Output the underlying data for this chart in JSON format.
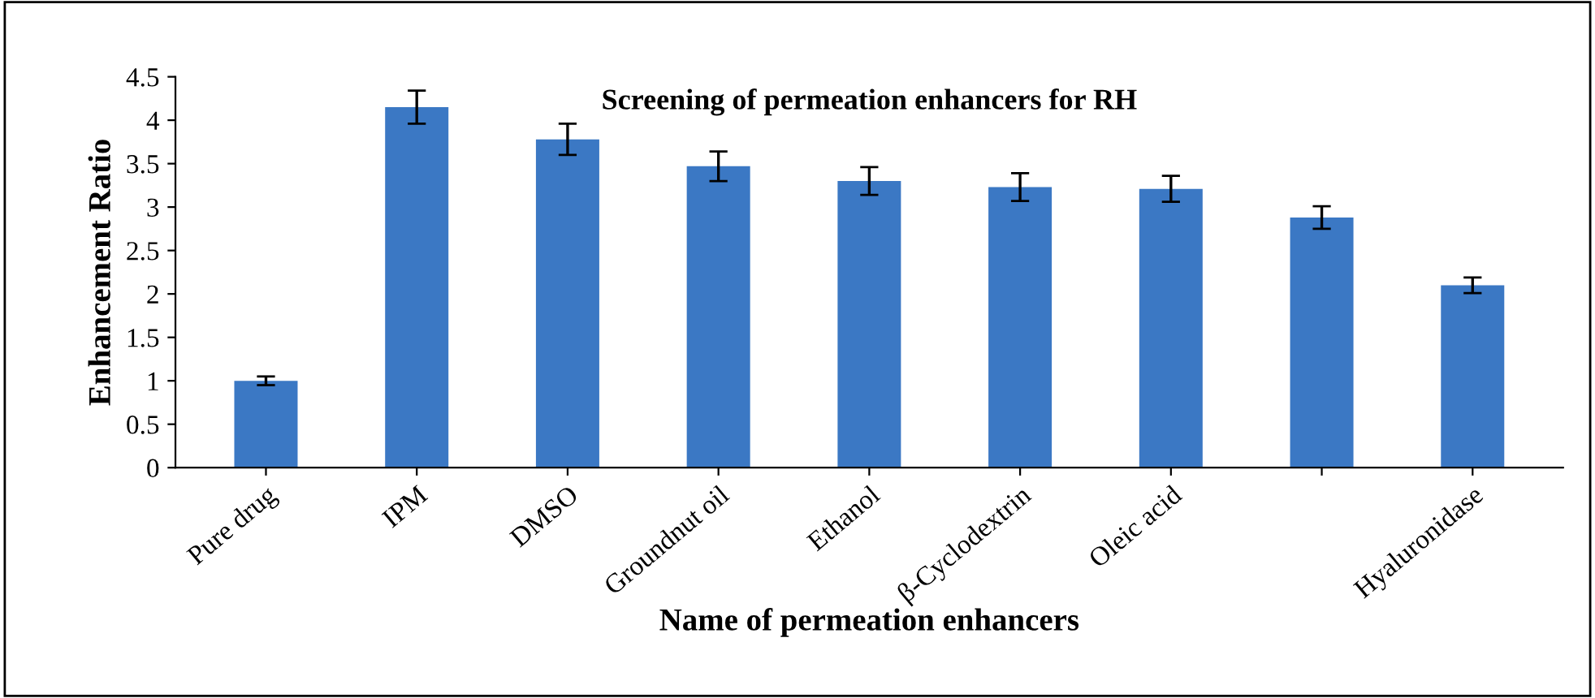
{
  "chart_data": {
    "type": "bar",
    "title": "Screening of permeation enhancers for RH",
    "xlabel": "Name of permeation enhancers",
    "ylabel": "Enhancement Ratio",
    "categories": [
      "Pure drug",
      "IPM",
      "DMSO",
      "Groundnut oil",
      "Ethanol",
      "β-Cyclodextrin",
      "Oleic acid",
      null,
      "Hyaluronidase"
    ],
    "values": [
      1.0,
      4.15,
      3.78,
      3.47,
      3.3,
      3.23,
      3.21,
      2.88,
      2.1
    ],
    "errors": [
      0.05,
      0.19,
      0.18,
      0.17,
      0.16,
      0.16,
      0.15,
      0.13,
      0.09
    ],
    "color": "#3b78c4",
    "ylim": [
      0,
      4.5
    ],
    "yticks": [
      0,
      0.5,
      1,
      1.5,
      2,
      2.5,
      3,
      3.5,
      4,
      4.5
    ],
    "grid": false,
    "legend": false
  }
}
